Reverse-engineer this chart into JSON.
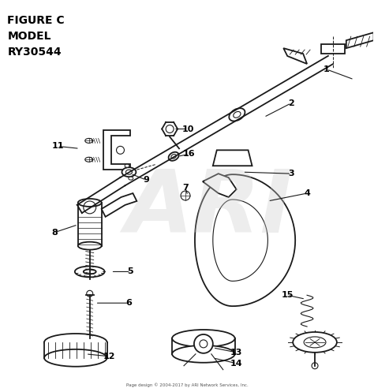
{
  "title_line1": "FIGURE C",
  "title_line2": "MODEL",
  "title_line3": "RY30544",
  "footer": "Page design © 2004-2017 by ARI Network Services, Inc.",
  "watermark": "ARI",
  "bg_color": "#ffffff",
  "line_color": "#1a1a1a",
  "label_color": "#000000",
  "watermark_color": "#cccccc"
}
